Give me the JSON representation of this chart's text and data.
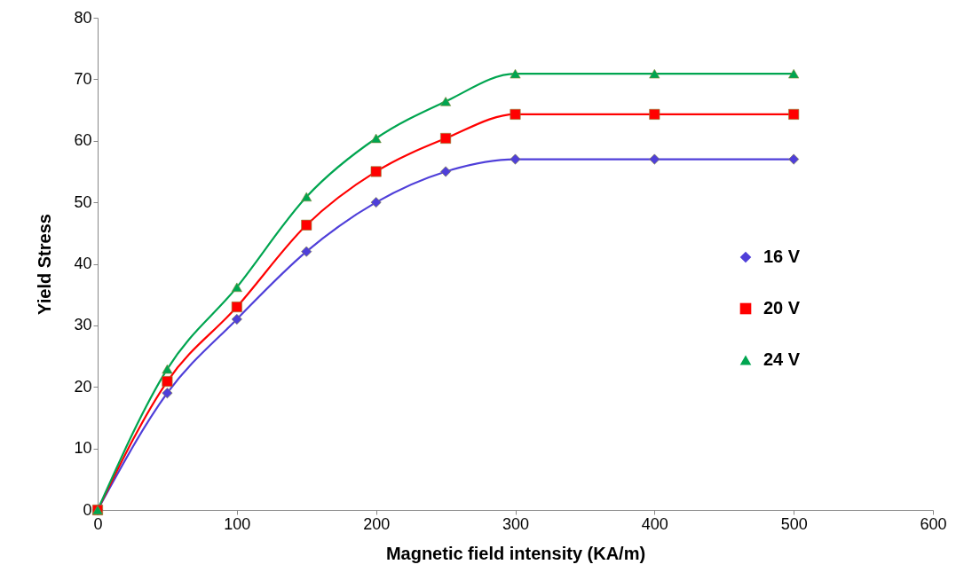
{
  "chart_data": {
    "type": "line",
    "xlabel": "Magnetic field intensity (KA/m)",
    "ylabel": "Yield  Stress",
    "x": [
      0,
      50,
      100,
      150,
      200,
      250,
      300,
      400,
      500
    ],
    "series": [
      {
        "name": "16 V",
        "color": "#4f3fd9",
        "marker": "diamond",
        "values": [
          0,
          19,
          31,
          42,
          50,
          55,
          57,
          57,
          57
        ]
      },
      {
        "name": "20 V",
        "color": "#ff0000",
        "marker": "square",
        "values": [
          0,
          20.9,
          33,
          46.3,
          55,
          60.4,
          64.3,
          64.3,
          64.3
        ]
      },
      {
        "name": "24 V",
        "color": "#00a550",
        "marker": "triangle",
        "values": [
          0,
          22.9,
          36.2,
          50.9,
          60.4,
          66.4,
          70.9,
          70.9,
          70.9
        ]
      }
    ],
    "xlim": [
      0,
      600
    ],
    "xticks": [
      0,
      100,
      200,
      300,
      400,
      500,
      600
    ],
    "ylim": [
      0,
      80
    ],
    "yticks": [
      0,
      10,
      20,
      30,
      40,
      50,
      60,
      70,
      80
    ],
    "legend": "right",
    "grid": false
  }
}
